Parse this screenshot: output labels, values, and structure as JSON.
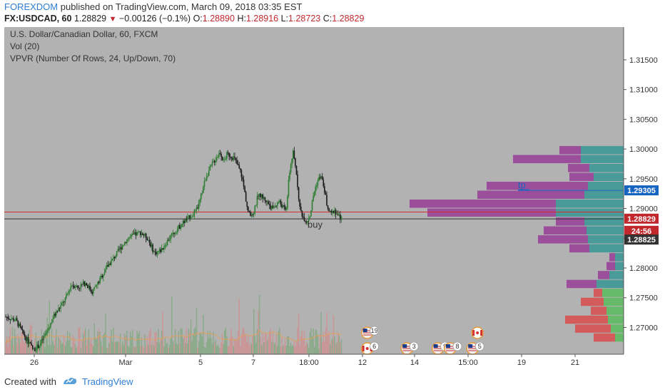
{
  "header": {
    "author": "FOREXDOM",
    "published_text": " published on TradingView.com, March 09, 2018 03:35 EST",
    "symbol_line": {
      "symbol": "FX:USDCAD, 60",
      "last": "1.28829",
      "arrow": "▼",
      "change": "−0.00126 (−0.1%)",
      "o_label": "O:",
      "o_value": "1.28890",
      "h_label": "H:",
      "h_value": "1.28916",
      "l_label": "L:",
      "l_value": "1.28723",
      "c_label": "C:",
      "c_value": "1.28829"
    }
  },
  "legend": {
    "title": "U.S. Dollar/Canadian Dollar, 60, FXCM",
    "vol": "Vol (20)",
    "vpvr": "VPVR (Number Of Rows, 24, Up/Down, 70)"
  },
  "chart_data": {
    "type": "candlestick",
    "y_axis": {
      "ticks": [
        "1.31500",
        "1.31000",
        "1.30500",
        "1.30000",
        "1.29500",
        "1.29000",
        "1.28500",
        "1.28000",
        "1.27500",
        "1.27000"
      ],
      "range": [
        1.2655,
        1.3205
      ]
    },
    "x_axis": {
      "ticks": [
        "26",
        "Mar",
        "5",
        "7",
        "18:00",
        "12",
        "14",
        "15:00",
        "19",
        "21"
      ]
    },
    "price_labels": [
      {
        "value": "1.29305",
        "color": "#1565c0"
      },
      {
        "value": "1.28829",
        "color": "#c0282d"
      },
      {
        "value": "24:56",
        "color": "#c0282d"
      },
      {
        "value": "1.28825",
        "color": "#333333"
      }
    ],
    "annotations": [
      {
        "text": "tp",
        "price": 1.29305
      },
      {
        "text": "buy",
        "price": 1.287
      }
    ],
    "lines": {
      "red_horizontal": 1.2894,
      "dark_horizontal": 1.28825,
      "tp": 1.29305
    },
    "price_path": [
      [
        0,
        1.2718
      ],
      [
        3,
        1.2712
      ],
      [
        5,
        1.269
      ],
      [
        8,
        1.2662
      ],
      [
        10,
        1.2672
      ],
      [
        12,
        1.2695
      ],
      [
        14,
        1.272
      ],
      [
        17,
        1.2745
      ],
      [
        19,
        1.2772
      ],
      [
        21,
        1.2768
      ],
      [
        23,
        1.2775
      ],
      [
        25,
        1.276
      ],
      [
        27,
        1.2778
      ],
      [
        29,
        1.28
      ],
      [
        31,
        1.2815
      ],
      [
        33,
        1.2832
      ],
      [
        35,
        1.2848
      ],
      [
        37,
        1.2855
      ],
      [
        39,
        1.286
      ],
      [
        41,
        1.285
      ],
      [
        43,
        1.2825
      ],
      [
        45,
        1.283
      ],
      [
        47,
        1.2848
      ],
      [
        49,
        1.2862
      ],
      [
        51,
        1.2875
      ],
      [
        53,
        1.2885
      ],
      [
        55,
        1.2895
      ],
      [
        56,
        1.291
      ],
      [
        57,
        1.2935
      ],
      [
        58,
        1.2955
      ],
      [
        60,
        1.2978
      ],
      [
        62,
        1.2995
      ],
      [
        63,
        1.2978
      ],
      [
        64,
        1.2992
      ],
      [
        66,
        1.2985
      ],
      [
        68,
        1.296
      ],
      [
        69,
        1.293
      ],
      [
        70,
        1.2895
      ],
      [
        71,
        1.2885
      ],
      [
        72,
        1.29
      ],
      [
        73,
        1.2925
      ],
      [
        75,
        1.2915
      ],
      [
        77,
        1.29
      ],
      [
        79,
        1.2912
      ],
      [
        81,
        1.2895
      ],
      [
        82,
        1.296
      ],
      [
        83,
        1.2995
      ],
      [
        84,
        1.296
      ],
      [
        85,
        1.29
      ],
      [
        86,
        1.2885
      ],
      [
        87,
        1.2878
      ],
      [
        88,
        1.289
      ],
      [
        89,
        1.2925
      ],
      [
        90,
        1.2945
      ],
      [
        91,
        1.2955
      ],
      [
        92,
        1.2935
      ],
      [
        93,
        1.29
      ],
      [
        94,
        1.289
      ],
      [
        95,
        1.2898
      ],
      [
        96,
        1.2888
      ],
      [
        97,
        1.2883
      ]
    ],
    "volume_profile": [
      {
        "price": 1.29975,
        "up": 60,
        "down": 30
      },
      {
        "price": 1.29825,
        "up": 60,
        "down": 95
      },
      {
        "price": 1.29675,
        "up": 48,
        "down": 30
      },
      {
        "price": 1.29525,
        "up": 42,
        "down": 34
      },
      {
        "price": 1.29375,
        "up": 50,
        "down": 142
      },
      {
        "price": 1.29225,
        "up": 55,
        "down": 150
      },
      {
        "price": 1.29075,
        "up": 95,
        "down": 205
      },
      {
        "price": 1.28925,
        "up": 95,
        "down": 180
      },
      {
        "price": 1.28775,
        "up": 55,
        "down": 40
      },
      {
        "price": 1.28625,
        "up": 52,
        "down": 60
      },
      {
        "price": 1.28475,
        "up": 50,
        "down": 70
      },
      {
        "price": 1.28325,
        "up": 48,
        "down": 28
      },
      {
        "price": 1.28175,
        "up": 12,
        "down": 8
      },
      {
        "price": 1.28025,
        "up": 12,
        "down": 12
      },
      {
        "price": 1.27875,
        "up": 20,
        "down": 16
      },
      {
        "price": 1.27725,
        "up": 38,
        "down": 42
      },
      {
        "price": 1.27575,
        "up": 30,
        "down": 12
      },
      {
        "price": 1.27425,
        "up": 28,
        "down": 32
      },
      {
        "price": 1.27275,
        "up": 24,
        "down": 22
      },
      {
        "price": 1.27125,
        "up": 22,
        "down": 60
      },
      {
        "price": 1.26975,
        "up": 18,
        "down": 50
      },
      {
        "price": 1.26825,
        "up": 12,
        "down": 30
      }
    ],
    "event_markers": [
      {
        "country": "US",
        "count": "19",
        "x_frac": 0.586,
        "row": 0
      },
      {
        "country": "CA",
        "count": "6",
        "x_frac": 0.586,
        "row": 1
      },
      {
        "country": "US",
        "count": "3",
        "x_frac": 0.65,
        "row": 1
      },
      {
        "country": "US",
        "count": "9",
        "x_frac": 0.7,
        "row": 1
      },
      {
        "country": "US",
        "count": "8",
        "x_frac": 0.72,
        "row": 1
      },
      {
        "country": "CA",
        "count": "",
        "x_frac": 0.764,
        "row": 0
      },
      {
        "country": "US",
        "count": "5",
        "x_frac": 0.756,
        "row": 1
      }
    ]
  },
  "footer": {
    "created_with": "Created with",
    "brand": "TradingView"
  },
  "colors": {
    "chart_bg": "#b2b2b2",
    "axis_bg": "#ffffff",
    "candle_up": "#2e7d32",
    "candle_down": "#1a1a1a",
    "vp_up": "#4a9a9a",
    "vp_down": "#9b4f9b",
    "vp_up_low": "#66bb6a",
    "vp_down_low": "#d35b5b",
    "ma_line": "#e0a060",
    "red_line": "#d32f2f",
    "tp_line": "#1565c0"
  }
}
